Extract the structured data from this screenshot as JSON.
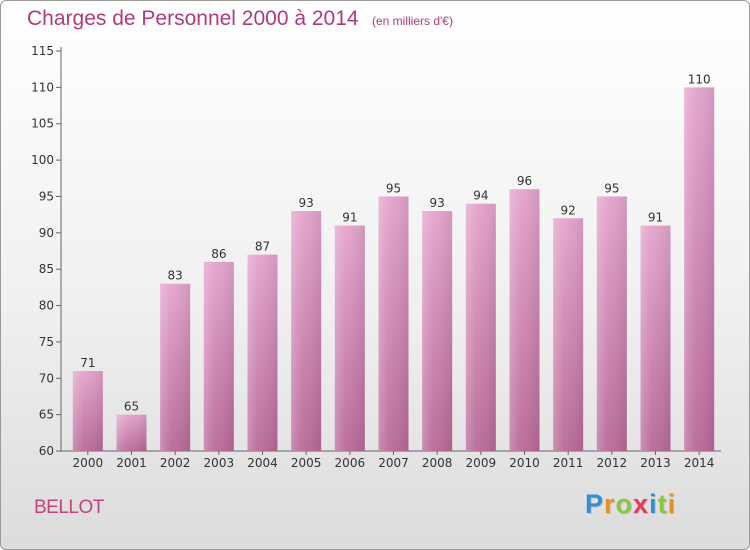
{
  "header": {
    "title": "Charges de Personnel 2000 à 2014",
    "subtitle": "(en milliers d'€)"
  },
  "footer": {
    "commune": "BELLOT",
    "logo_letters": [
      "P",
      "r",
      "o",
      "x",
      "i",
      "t",
      "i"
    ],
    "logo_colors": [
      "#2f8fd8",
      "#e8901c",
      "#8cc63f",
      "#e23a5c",
      "#2f8fd8",
      "#8cc63f",
      "#e8901c"
    ]
  },
  "chart_data": {
    "type": "bar",
    "title": "Charges de Personnel 2000 à 2014",
    "subtitle": "(en milliers d'€)",
    "categories": [
      "2000",
      "2001",
      "2002",
      "2003",
      "2004",
      "2005",
      "2006",
      "2007",
      "2008",
      "2009",
      "2010",
      "2011",
      "2012",
      "2013",
      "2014"
    ],
    "values": [
      71,
      65,
      83,
      86,
      87,
      93,
      91,
      95,
      93,
      94,
      96,
      92,
      95,
      91,
      110
    ],
    "ylim": [
      60,
      115
    ],
    "yticks": [
      60,
      65,
      70,
      75,
      80,
      85,
      90,
      95,
      100,
      105,
      110,
      115
    ],
    "grid": false,
    "legend": "none",
    "bar_color": "#e4a4cc",
    "bar_color_bottom": "#b86a98"
  }
}
